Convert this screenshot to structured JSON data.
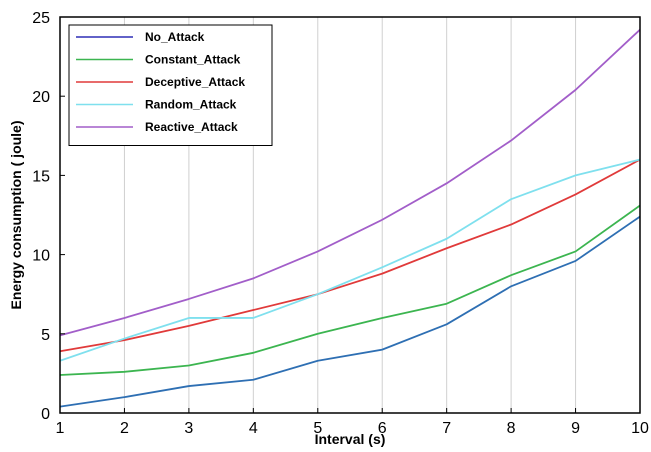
{
  "chart_data": {
    "type": "line",
    "title": "",
    "xlabel": "Interval (s)",
    "ylabel": "Energy consumption ( joule)",
    "x": [
      1,
      2,
      3,
      4,
      5,
      6,
      7,
      8,
      9,
      10
    ],
    "xlim": [
      1,
      10
    ],
    "ylim": [
      0,
      25
    ],
    "x_ticks": [
      "1",
      "2",
      "3",
      "4",
      "5",
      "6",
      "7",
      "8",
      "9",
      "10"
    ],
    "y_ticks": [
      "0",
      "5",
      "10",
      "15",
      "20",
      "25"
    ],
    "grid": "vertical",
    "legend_position": "top-left",
    "series": [
      {
        "name": "No_Attack",
        "color": "#2e6fb3",
        "legend_color": "#2f2fb5",
        "values": [
          0.4,
          1.0,
          1.7,
          2.1,
          3.3,
          4.0,
          5.6,
          8.0,
          9.6,
          12.4
        ]
      },
      {
        "name": "Constant_Attack",
        "color": "#3cb550",
        "legend_color": "#3cb550",
        "values": [
          2.4,
          2.6,
          3.0,
          3.8,
          5.0,
          6.0,
          6.9,
          8.7,
          10.2,
          13.1
        ]
      },
      {
        "name": "Deceptive_Attack",
        "color": "#e03a3a",
        "legend_color": "#e03a3a",
        "values": [
          3.9,
          4.6,
          5.5,
          6.5,
          7.5,
          8.8,
          10.4,
          11.9,
          13.8,
          16.0
        ]
      },
      {
        "name": "Random_Attack",
        "color": "#7fe0ee",
        "legend_color": "#7fe0ee",
        "values": [
          3.3,
          4.7,
          6.0,
          6.0,
          7.5,
          9.2,
          11.0,
          13.5,
          15.0,
          16.0
        ]
      },
      {
        "name": "Reactive_Attack",
        "color": "#a25ec9",
        "legend_color": "#a25ec9",
        "values": [
          4.9,
          6.0,
          7.2,
          8.5,
          10.2,
          12.2,
          14.5,
          17.2,
          20.4,
          24.2
        ]
      }
    ]
  }
}
